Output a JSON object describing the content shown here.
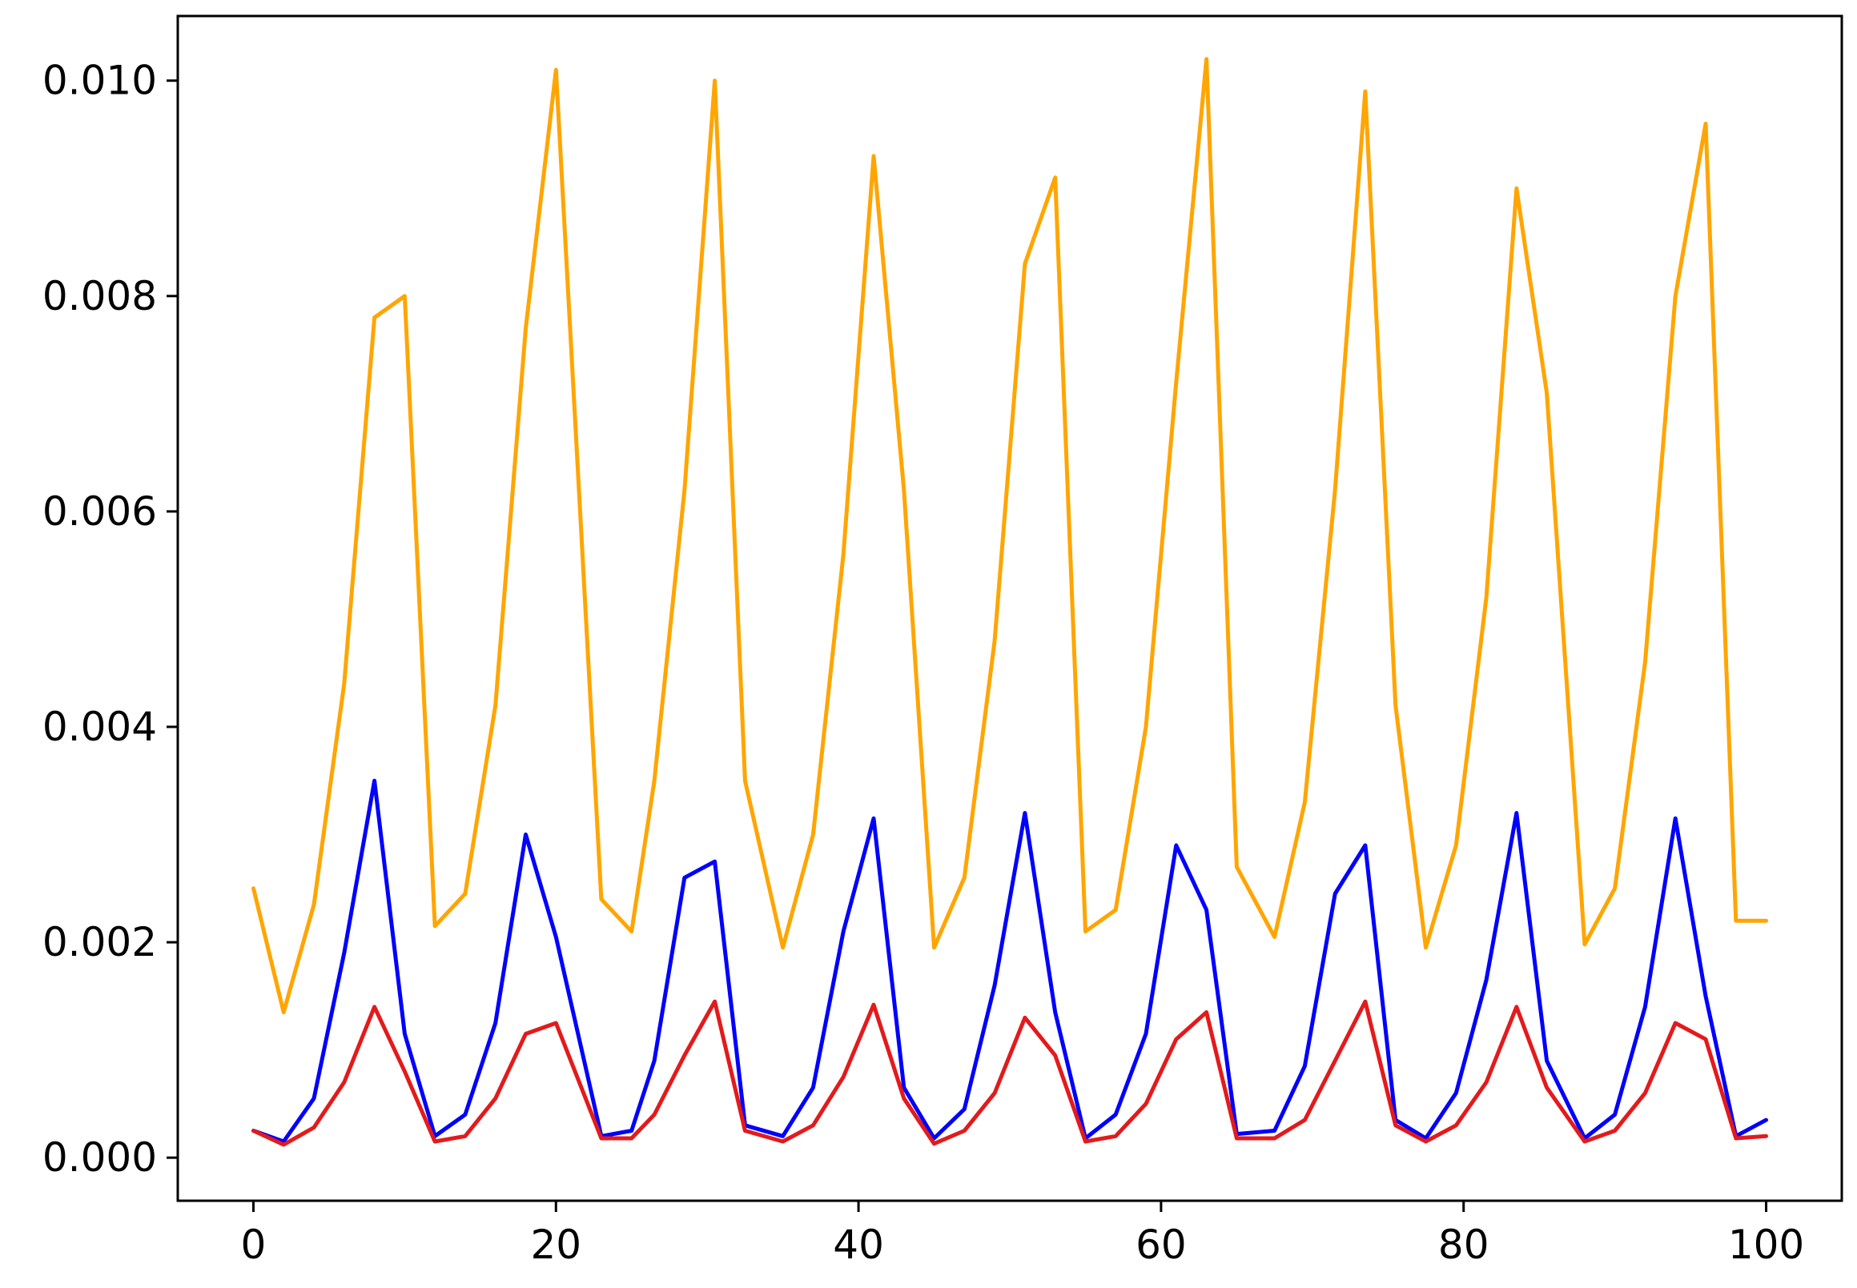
{
  "chart_data": {
    "type": "line",
    "title": "",
    "xlabel": "",
    "ylabel": "",
    "xlim": [
      -5,
      105
    ],
    "ylim": [
      -0.0004,
      0.0106
    ],
    "grid": false,
    "legend": "none",
    "x_ticks": [
      {
        "value": 0,
        "label": "0"
      },
      {
        "value": 20,
        "label": "20"
      },
      {
        "value": 40,
        "label": "40"
      },
      {
        "value": 60,
        "label": "60"
      },
      {
        "value": 80,
        "label": "80"
      },
      {
        "value": 100,
        "label": "100"
      }
    ],
    "y_ticks": [
      {
        "value": 0.0,
        "label": "0.000"
      },
      {
        "value": 0.002,
        "label": "0.002"
      },
      {
        "value": 0.004,
        "label": "0.004"
      },
      {
        "value": 0.006,
        "label": "0.006"
      },
      {
        "value": 0.008,
        "label": "0.008"
      },
      {
        "value": 0.01,
        "label": "0.010"
      }
    ],
    "x": [
      0,
      2,
      4,
      6,
      8,
      10,
      12,
      14,
      16,
      18,
      20,
      23,
      25,
      26.5,
      28.5,
      30.5,
      32.5,
      35,
      37,
      39,
      41,
      43,
      45,
      47,
      49,
      51,
      53,
      55,
      57,
      59,
      61,
      63,
      65,
      67.5,
      69.5,
      71.5,
      73.5,
      75.5,
      77.5,
      79.5,
      81.5,
      83.5,
      85.5,
      88,
      90,
      92,
      94,
      96,
      98,
      100
    ],
    "series": [
      {
        "color": "#FFA500",
        "values": [
          0.0025,
          0.00135,
          0.00235,
          0.0044,
          0.0078,
          0.008,
          0.00215,
          0.00245,
          0.0042,
          0.0077,
          0.0101,
          0.0024,
          0.0021,
          0.0035,
          0.0062,
          0.01,
          0.0035,
          0.00195,
          0.003,
          0.0056,
          0.0093,
          0.0062,
          0.00195,
          0.0026,
          0.0048,
          0.0083,
          0.0091,
          0.0021,
          0.0023,
          0.004,
          0.0072,
          0.0102,
          0.0027,
          0.00205,
          0.0033,
          0.0062,
          0.0099,
          0.0042,
          0.00195,
          0.0029,
          0.0052,
          0.009,
          0.0071,
          0.00198,
          0.0025,
          0.0046,
          0.008,
          0.0096,
          0.0022,
          0.0022
        ]
      },
      {
        "color": "#0000FF",
        "values": [
          0.00025,
          0.00015,
          0.00055,
          0.0019,
          0.0035,
          0.00115,
          0.0002,
          0.0004,
          0.00125,
          0.003,
          0.00205,
          0.0002,
          0.00025,
          0.0009,
          0.0026,
          0.00275,
          0.0003,
          0.0002,
          0.00065,
          0.0021,
          0.00315,
          0.00065,
          0.00018,
          0.00045,
          0.0016,
          0.0032,
          0.00135,
          0.00018,
          0.0004,
          0.00115,
          0.0029,
          0.0023,
          0.00022,
          0.00025,
          0.00085,
          0.00245,
          0.0029,
          0.00035,
          0.00018,
          0.0006,
          0.00165,
          0.0032,
          0.0009,
          0.00018,
          0.0004,
          0.0014,
          0.00315,
          0.0015,
          0.0002,
          0.00035
        ]
      },
      {
        "color": "#E31A1C",
        "values": [
          0.00025,
          0.00012,
          0.00028,
          0.0007,
          0.0014,
          0.0008,
          0.00015,
          0.0002,
          0.00055,
          0.00115,
          0.00125,
          0.00018,
          0.00018,
          0.0004,
          0.00095,
          0.00145,
          0.00025,
          0.00015,
          0.0003,
          0.00075,
          0.00142,
          0.00055,
          0.00013,
          0.00025,
          0.0006,
          0.0013,
          0.00095,
          0.00015,
          0.0002,
          0.0005,
          0.0011,
          0.00135,
          0.00018,
          0.00018,
          0.00035,
          0.0009,
          0.00145,
          0.0003,
          0.00015,
          0.0003,
          0.0007,
          0.0014,
          0.00065,
          0.00015,
          0.00025,
          0.0006,
          0.00125,
          0.0011,
          0.00018,
          0.0002
        ]
      }
    ]
  }
}
